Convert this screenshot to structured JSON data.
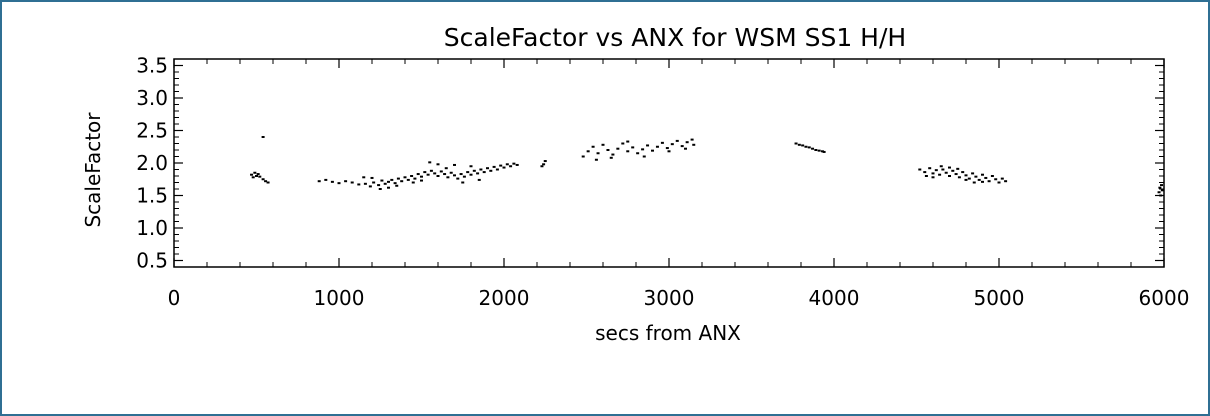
{
  "chart_data": {
    "type": "scatter",
    "title": "ScaleFactor vs ANX for WSM SS1 H/H",
    "xlabel": "secs from ANX",
    "ylabel": "ScaleFactor",
    "xlim": [
      0,
      6000
    ],
    "ylim": [
      0.4,
      3.6
    ],
    "x_ticks": [
      "0",
      "1000",
      "2000",
      "3000",
      "4000",
      "5000",
      "6000"
    ],
    "y_ticks": [
      "0.5",
      "1.0",
      "1.5",
      "2.0",
      "2.5",
      "3.0",
      "3.5"
    ],
    "grid": false,
    "series": [
      {
        "color": "#000000",
        "points": [
          [
            470,
            1.82
          ],
          [
            480,
            1.78
          ],
          [
            490,
            1.85
          ],
          [
            500,
            1.8
          ],
          [
            510,
            1.83
          ],
          [
            520,
            1.79
          ],
          [
            540,
            1.75
          ],
          [
            555,
            1.72
          ],
          [
            570,
            1.7
          ],
          [
            540,
            2.4
          ],
          [
            880,
            1.72
          ],
          [
            920,
            1.74
          ],
          [
            960,
            1.71
          ],
          [
            1000,
            1.69
          ],
          [
            1040,
            1.72
          ],
          [
            1080,
            1.7
          ],
          [
            1120,
            1.67
          ],
          [
            1160,
            1.68
          ],
          [
            1190,
            1.64
          ],
          [
            1210,
            1.7
          ],
          [
            1240,
            1.66
          ],
          [
            1260,
            1.73
          ],
          [
            1280,
            1.68
          ],
          [
            1300,
            1.71
          ],
          [
            1320,
            1.74
          ],
          [
            1340,
            1.69
          ],
          [
            1360,
            1.76
          ],
          [
            1380,
            1.72
          ],
          [
            1400,
            1.78
          ],
          [
            1420,
            1.74
          ],
          [
            1440,
            1.8
          ],
          [
            1460,
            1.76
          ],
          [
            1480,
            1.83
          ],
          [
            1500,
            1.79
          ],
          [
            1520,
            1.86
          ],
          [
            1540,
            1.82
          ],
          [
            1560,
            1.88
          ],
          [
            1580,
            1.84
          ],
          [
            1600,
            1.8
          ],
          [
            1620,
            1.87
          ],
          [
            1640,
            1.83
          ],
          [
            1660,
            1.78
          ],
          [
            1680,
            1.85
          ],
          [
            1700,
            1.81
          ],
          [
            1720,
            1.76
          ],
          [
            1740,
            1.83
          ],
          [
            1760,
            1.79
          ],
          [
            1780,
            1.86
          ],
          [
            1800,
            1.82
          ],
          [
            1820,
            1.88
          ],
          [
            1840,
            1.84
          ],
          [
            1860,
            1.9
          ],
          [
            1880,
            1.86
          ],
          [
            1900,
            1.92
          ],
          [
            1920,
            1.88
          ],
          [
            1940,
            1.94
          ],
          [
            1960,
            1.9
          ],
          [
            1980,
            1.96
          ],
          [
            2000,
            1.93
          ],
          [
            2020,
            1.98
          ],
          [
            2040,
            1.95
          ],
          [
            2060,
            1.99
          ],
          [
            2080,
            1.97
          ],
          [
            1550,
            2.01
          ],
          [
            1600,
            1.98
          ],
          [
            1700,
            1.97
          ],
          [
            1800,
            1.95
          ],
          [
            1250,
            1.6
          ],
          [
            1300,
            1.62
          ],
          [
            1150,
            1.78
          ],
          [
            1200,
            1.77
          ],
          [
            1350,
            1.65
          ],
          [
            1450,
            1.7
          ],
          [
            1500,
            1.73
          ],
          [
            1650,
            1.92
          ],
          [
            1750,
            1.7
          ],
          [
            1850,
            1.74
          ],
          [
            2240,
            1.98
          ],
          [
            2250,
            2.03
          ],
          [
            2230,
            1.95
          ],
          [
            2480,
            2.1
          ],
          [
            2510,
            2.18
          ],
          [
            2540,
            2.25
          ],
          [
            2570,
            2.15
          ],
          [
            2600,
            2.28
          ],
          [
            2630,
            2.2
          ],
          [
            2660,
            2.13
          ],
          [
            2690,
            2.22
          ],
          [
            2720,
            2.3
          ],
          [
            2750,
            2.18
          ],
          [
            2780,
            2.24
          ],
          [
            2810,
            2.15
          ],
          [
            2840,
            2.21
          ],
          [
            2870,
            2.27
          ],
          [
            2900,
            2.19
          ],
          [
            2930,
            2.25
          ],
          [
            2960,
            2.31
          ],
          [
            2990,
            2.23
          ],
          [
            3020,
            2.29
          ],
          [
            3050,
            2.34
          ],
          [
            3080,
            2.26
          ],
          [
            3110,
            2.32
          ],
          [
            3140,
            2.36
          ],
          [
            3150,
            2.28
          ],
          [
            2560,
            2.05
          ],
          [
            2650,
            2.08
          ],
          [
            2750,
            2.33
          ],
          [
            2850,
            2.1
          ],
          [
            3000,
            2.18
          ],
          [
            3100,
            2.22
          ],
          [
            3770,
            2.3
          ],
          [
            3790,
            2.28
          ],
          [
            3810,
            2.27
          ],
          [
            3830,
            2.25
          ],
          [
            3850,
            2.24
          ],
          [
            3870,
            2.22
          ],
          [
            3890,
            2.2
          ],
          [
            3910,
            2.19
          ],
          [
            3930,
            2.18
          ],
          [
            3940,
            2.17
          ],
          [
            4520,
            1.9
          ],
          [
            4550,
            1.86
          ],
          [
            4580,
            1.92
          ],
          [
            4600,
            1.84
          ],
          [
            4620,
            1.89
          ],
          [
            4640,
            1.82
          ],
          [
            4660,
            1.9
          ],
          [
            4680,
            1.85
          ],
          [
            4700,
            1.8
          ],
          [
            4720,
            1.88
          ],
          [
            4740,
            1.83
          ],
          [
            4760,
            1.78
          ],
          [
            4780,
            1.86
          ],
          [
            4800,
            1.81
          ],
          [
            4820,
            1.76
          ],
          [
            4840,
            1.84
          ],
          [
            4860,
            1.79
          ],
          [
            4880,
            1.74
          ],
          [
            4900,
            1.82
          ],
          [
            4920,
            1.77
          ],
          [
            4940,
            1.72
          ],
          [
            4960,
            1.8
          ],
          [
            4980,
            1.75
          ],
          [
            5000,
            1.7
          ],
          [
            5020,
            1.76
          ],
          [
            5040,
            1.72
          ],
          [
            4650,
            1.95
          ],
          [
            4700,
            1.93
          ],
          [
            4750,
            1.91
          ],
          [
            4800,
            1.74
          ],
          [
            4850,
            1.7
          ],
          [
            4900,
            1.71
          ],
          [
            4600,
            1.78
          ],
          [
            4560,
            1.8
          ],
          [
            5970,
            1.55
          ],
          [
            5975,
            1.62
          ],
          [
            5980,
            1.5
          ],
          [
            5985,
            1.66
          ],
          [
            5990,
            1.58
          ]
        ]
      }
    ]
  }
}
